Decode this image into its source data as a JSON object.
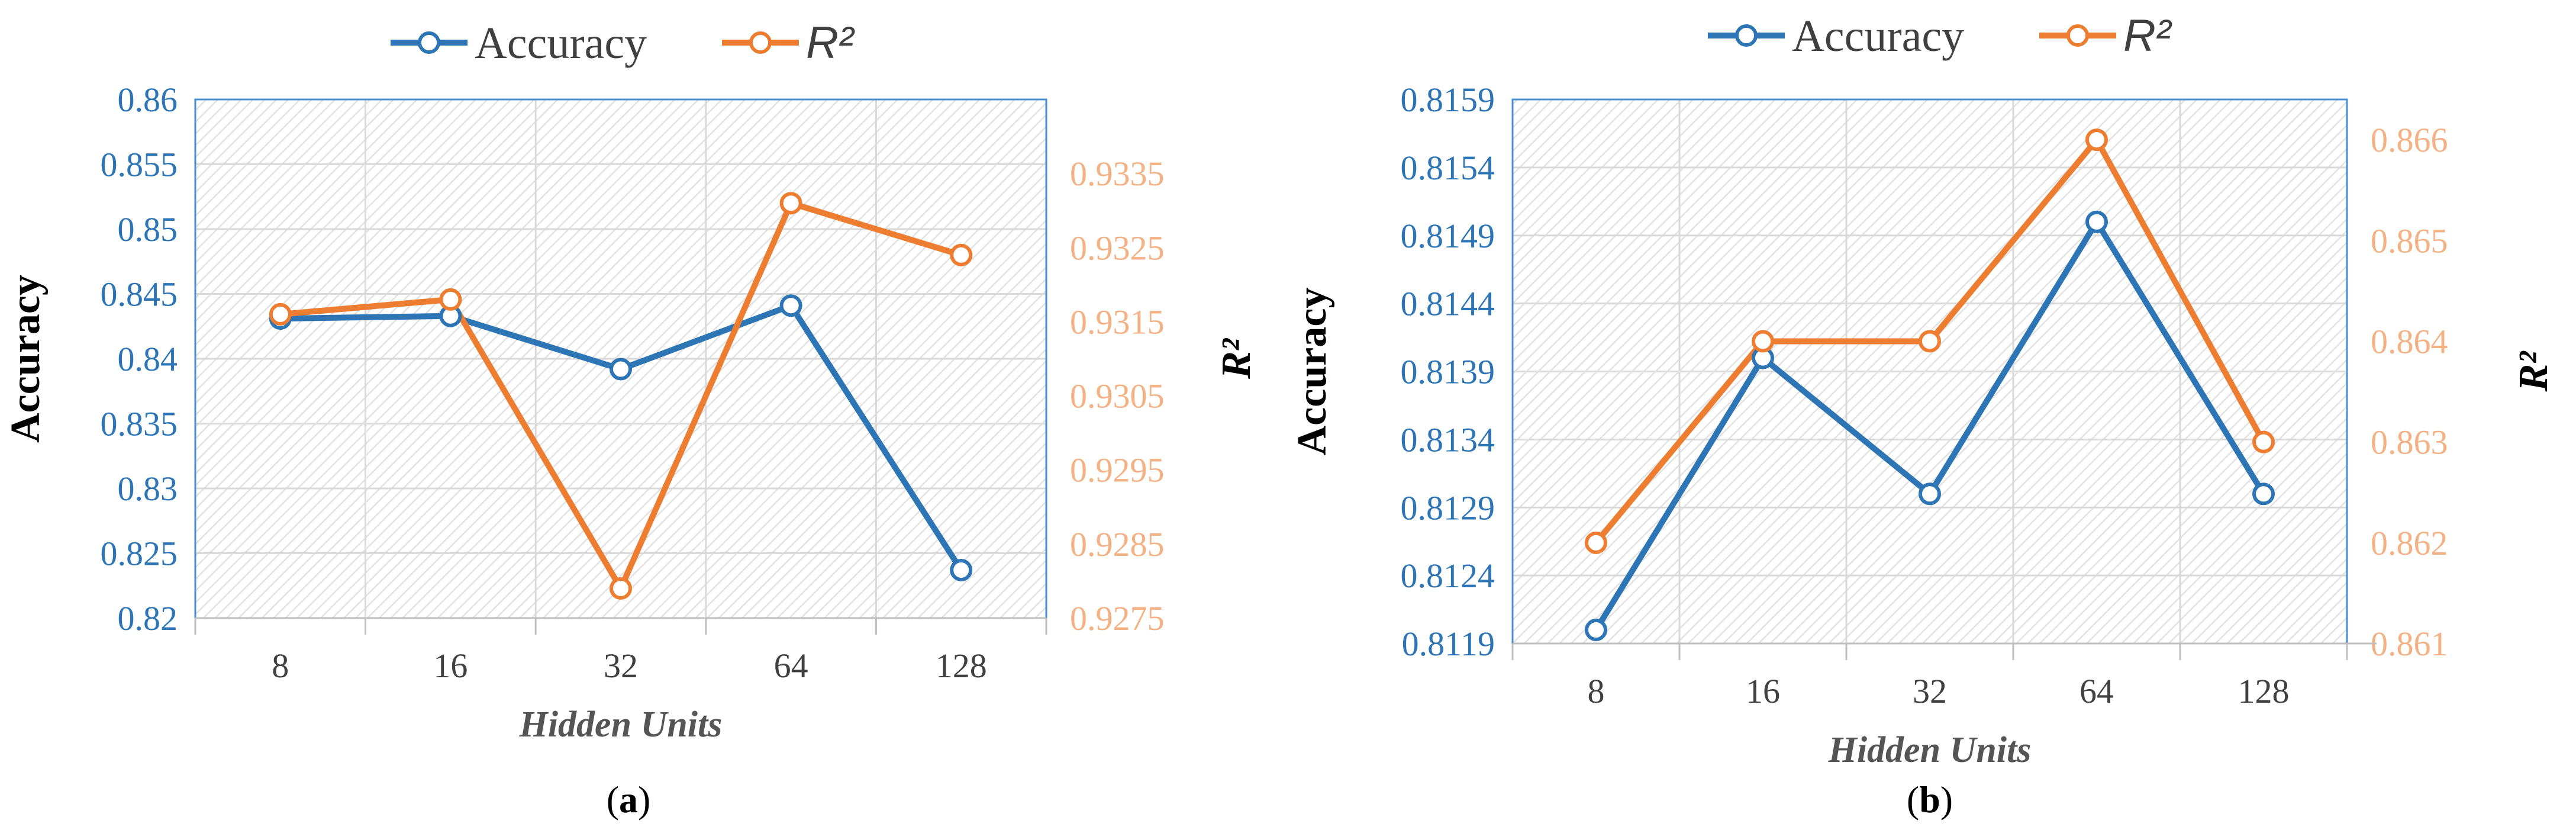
{
  "chart_data": [
    {
      "type": "line",
      "caption_letter": "a",
      "categories": [
        "8",
        "16",
        "32",
        "64",
        "128"
      ],
      "xlabel": "Hidden Units",
      "ylabel": "Accuracy",
      "y2label": "R²",
      "ylim": [
        0.82,
        0.86
      ],
      "yticks": [
        "0.82",
        "0.825",
        "0.83",
        "0.835",
        "0.84",
        "0.845",
        "0.85",
        "0.855",
        "0.86"
      ],
      "y2lim": [
        0.9275,
        0.9345
      ],
      "y2ticks": [
        "0.9275",
        "0.9285",
        "0.9295",
        "0.9305",
        "0.9315",
        "0.9325",
        "0.9335"
      ],
      "grid": true,
      "legend_position": "top",
      "series": [
        {
          "name": "Accuracy",
          "axis": "left",
          "color": "#2e75b6",
          "values": [
            0.8431,
            0.8433,
            0.8392,
            0.8441,
            0.8237
          ]
        },
        {
          "name": "R²",
          "axis": "right",
          "color": "#ed7d31",
          "values": [
            0.9316,
            0.9318,
            0.9279,
            0.9331,
            0.9324
          ]
        }
      ]
    },
    {
      "type": "line",
      "caption_letter": "b",
      "categories": [
        "8",
        "16",
        "32",
        "64",
        "128"
      ],
      "xlabel": "Hidden Units",
      "ylabel": "Accuracy",
      "y2label": "R²",
      "ylim": [
        0.8119,
        0.8159
      ],
      "yticks": [
        "0.8119",
        "0.8124",
        "0.8129",
        "0.8134",
        "0.8139",
        "0.8144",
        "0.8149",
        "0.8154",
        "0.8159"
      ],
      "y2lim": [
        0.861,
        0.8664
      ],
      "y2ticks": [
        "0.861",
        "0.862",
        "0.863",
        "0.864",
        "0.865",
        "0.866"
      ],
      "grid": true,
      "legend_position": "top",
      "series": [
        {
          "name": "Accuracy",
          "axis": "left",
          "color": "#2e75b6",
          "values": [
            0.812,
            0.814,
            0.813,
            0.815,
            0.813
          ]
        },
        {
          "name": "R²",
          "axis": "right",
          "color": "#ed7d31",
          "values": [
            0.862,
            0.864,
            0.864,
            0.866,
            0.863
          ]
        }
      ]
    }
  ]
}
